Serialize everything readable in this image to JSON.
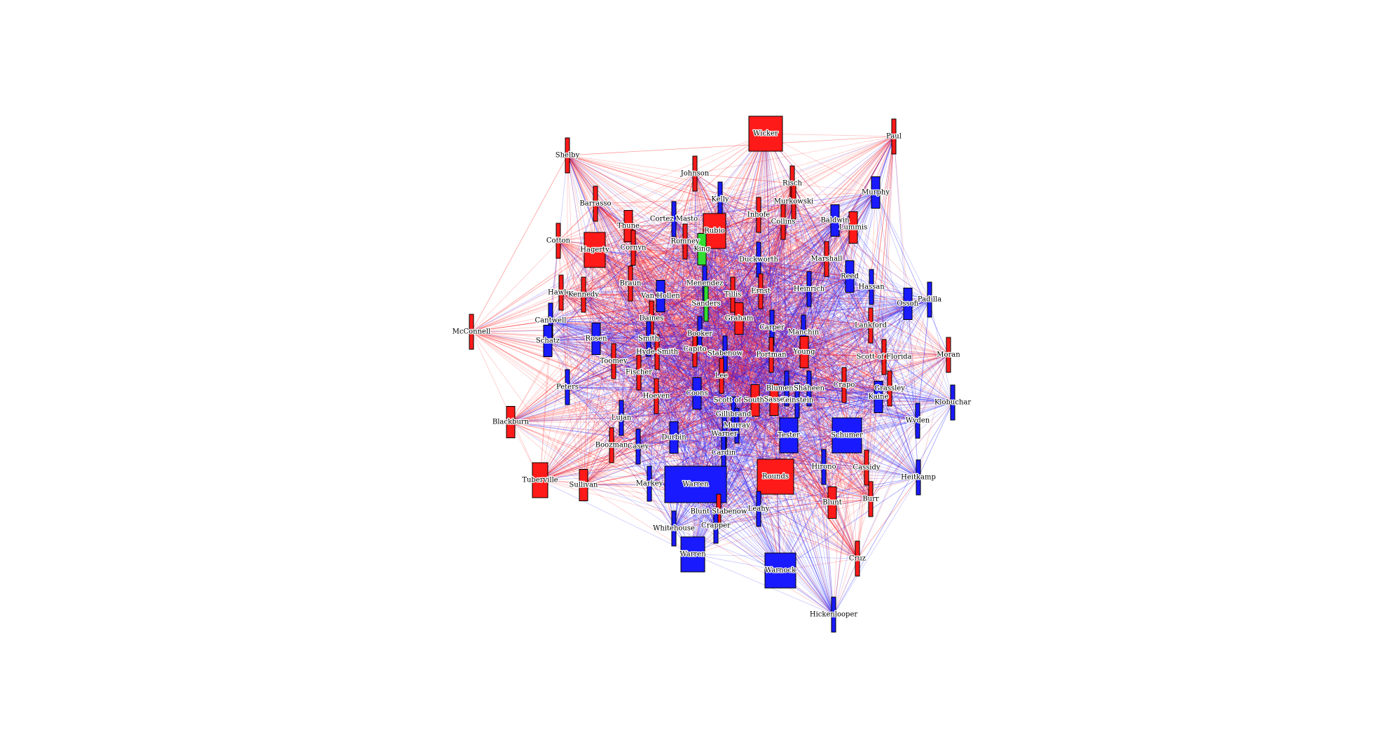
{
  "colors": {
    "Republican": "#ff1a1a",
    "Democrat": "#1a1aff",
    "Independent": "#33dd33",
    "background": "#ffffff",
    "edge_republican": "#ff2020",
    "edge_democrat": "#2020ff"
  },
  "nodes": [
    {
      "id": "Wicker",
      "party": "Republican",
      "size": "large"
    },
    {
      "id": "Paul",
      "party": "Republican",
      "size": "thin"
    },
    {
      "id": "Shelby",
      "party": "Republican",
      "size": "thin"
    },
    {
      "id": "Johnson",
      "party": "Republican",
      "size": "thin"
    },
    {
      "id": "Kelly",
      "party": "Democrat",
      "size": "thin"
    },
    {
      "id": "Risch",
      "party": "Republican",
      "size": "thin"
    },
    {
      "id": "Murkowski",
      "party": "Republican",
      "size": "thin"
    },
    {
      "id": "Murphy",
      "party": "Democrat",
      "size": "narrow"
    },
    {
      "id": "Barrasso",
      "party": "Republican",
      "size": "thin"
    },
    {
      "id": "Cortez Masto",
      "party": "Democrat",
      "size": "thin"
    },
    {
      "id": "Inhofe",
      "party": "Republican",
      "size": "thin"
    },
    {
      "id": "Collins",
      "party": "Republican",
      "size": "thin"
    },
    {
      "id": "Baldwin",
      "party": "Democrat",
      "size": "narrow"
    },
    {
      "id": "Lummis",
      "party": "Republican",
      "size": "narrow"
    },
    {
      "id": "Thune",
      "party": "Republican",
      "size": "narrow"
    },
    {
      "id": "Rubio",
      "party": "Republican",
      "size": "medium"
    },
    {
      "id": "Romney",
      "party": "Republican",
      "size": "thin"
    },
    {
      "id": "King",
      "party": "Independent",
      "size": "narrow"
    },
    {
      "id": "Cotton",
      "party": "Republican",
      "size": "thin"
    },
    {
      "id": "Hagerty",
      "party": "Republican",
      "size": "medium"
    },
    {
      "id": "Cornyn",
      "party": "Republican",
      "size": "thin"
    },
    {
      "id": "Duckworth",
      "party": "Democrat",
      "size": "thin"
    },
    {
      "id": "Marshall",
      "party": "Republican",
      "size": "thin"
    },
    {
      "id": "Hawley",
      "party": "Republican",
      "size": "thin"
    },
    {
      "id": "Kennedy",
      "party": "Republican",
      "size": "thin"
    },
    {
      "id": "Braun",
      "party": "Republican",
      "size": "thin"
    },
    {
      "id": "Van Hollen",
      "party": "Democrat",
      "size": "narrow"
    },
    {
      "id": "Menendez",
      "party": "Democrat",
      "size": "thin"
    },
    {
      "id": "Tillis",
      "party": "Republican",
      "size": "thin"
    },
    {
      "id": "Ernst",
      "party": "Republican",
      "size": "thin"
    },
    {
      "id": "Heinrich",
      "party": "Democrat",
      "size": "thin"
    },
    {
      "id": "Reed",
      "party": "Democrat",
      "size": "narrow"
    },
    {
      "id": "Hassan",
      "party": "Democrat",
      "size": "thin"
    },
    {
      "id": "Ossoff",
      "party": "Democrat",
      "size": "narrow"
    },
    {
      "id": "Padilla",
      "party": "Democrat",
      "size": "thin"
    },
    {
      "id": "Sanders",
      "party": "Independent",
      "size": "thin"
    },
    {
      "id": "Capito",
      "party": "Republican",
      "size": "thin"
    },
    {
      "id": "Daines",
      "party": "Republican",
      "size": "thin"
    },
    {
      "id": "Graham",
      "party": "Republican",
      "size": "narrow"
    },
    {
      "id": "Cantwell",
      "party": "Democrat",
      "size": "thin"
    },
    {
      "id": "McConnell",
      "party": "Republican",
      "size": "thin"
    },
    {
      "id": "Schatz",
      "party": "Democrat",
      "size": "narrow"
    },
    {
      "id": "Rosen",
      "party": "Democrat",
      "size": "narrow"
    },
    {
      "id": "Smith",
      "party": "Democrat",
      "size": "thin"
    },
    {
      "id": "Hyde-Smith",
      "party": "Republican",
      "size": "thin"
    },
    {
      "id": "Booker",
      "party": "Democrat",
      "size": "thin"
    },
    {
      "id": "Carper",
      "party": "Democrat",
      "size": "thin"
    },
    {
      "id": "Manchin",
      "party": "Democrat",
      "size": "thin"
    },
    {
      "id": "Lankford",
      "party": "Republican",
      "size": "thin"
    },
    {
      "id": "Toomey",
      "party": "Republican",
      "size": "thin"
    },
    {
      "id": "Stabenow",
      "party": "Democrat",
      "size": "thin"
    },
    {
      "id": "Portman",
      "party": "Republican",
      "size": "thin"
    },
    {
      "id": "Young",
      "party": "Republican",
      "size": "narrow"
    },
    {
      "id": "Scott of Florida",
      "party": "Republican",
      "size": "thin"
    },
    {
      "id": "Moran",
      "party": "Republican",
      "size": "thin"
    },
    {
      "id": "Fischer",
      "party": "Republican",
      "size": "thin"
    },
    {
      "id": "Peters",
      "party": "Democrat",
      "size": "thin"
    },
    {
      "id": "Lee",
      "party": "Republican",
      "size": "thin"
    },
    {
      "id": "Blumenthal",
      "party": "Democrat",
      "size": "thin"
    },
    {
      "id": "Shaheen",
      "party": "Democrat",
      "size": "thin"
    },
    {
      "id": "Crapo",
      "party": "Republican",
      "size": "thin"
    },
    {
      "id": "Grassley",
      "party": "Republican",
      "size": "thin"
    },
    {
      "id": "Kaine",
      "party": "Democrat",
      "size": "narrow"
    },
    {
      "id": "Klobuchar",
      "party": "Democrat",
      "size": "thin"
    },
    {
      "id": "Hoeven",
      "party": "Republican",
      "size": "thin"
    },
    {
      "id": "Coons",
      "party": "Democrat",
      "size": "narrow"
    },
    {
      "id": "Scott of South Carolina",
      "party": "Republican",
      "size": "narrow"
    },
    {
      "id": "Feinstein",
      "party": "Democrat",
      "size": "thin"
    },
    {
      "id": "Sasse",
      "party": "Republican",
      "size": "narrow"
    },
    {
      "id": "Blackburn",
      "party": "Republican",
      "size": "narrow"
    },
    {
      "id": "Luján",
      "party": "Democrat",
      "size": "thin"
    },
    {
      "id": "Gillibrand",
      "party": "Democrat",
      "size": "thin"
    },
    {
      "id": "Wyden",
      "party": "Democrat",
      "size": "thin"
    },
    {
      "id": "Murray",
      "party": "Democrat",
      "size": "thin"
    },
    {
      "id": "Tester",
      "party": "Democrat",
      "size": "medium"
    },
    {
      "id": "Schumer",
      "party": "Democrat",
      "size": "medium"
    },
    {
      "id": "Durbin",
      "party": "Democrat",
      "size": "narrow"
    },
    {
      "id": "Boozman",
      "party": "Republican",
      "size": "thin"
    },
    {
      "id": "Casey",
      "party": "Democrat",
      "size": "thin"
    },
    {
      "id": "Warner",
      "party": "Democrat",
      "size": "thin"
    },
    {
      "id": "Cardin",
      "party": "Democrat",
      "size": "thin"
    },
    {
      "id": "Hirono",
      "party": "Democrat",
      "size": "thin"
    },
    {
      "id": "Cassidy",
      "party": "Republican",
      "size": "thin"
    },
    {
      "id": "Tuberville",
      "party": "Republican",
      "size": "medium"
    },
    {
      "id": "Sullivan",
      "party": "Republican",
      "size": "narrow"
    },
    {
      "id": "Markey",
      "party": "Democrat",
      "size": "thin"
    },
    {
      "id": "Warren",
      "party": "Democrat",
      "size": "xlarge"
    },
    {
      "id": "Rounds",
      "party": "Republican",
      "size": "large"
    },
    {
      "id": "Heitkamp",
      "party": "Democrat",
      "size": "thin"
    },
    {
      "id": "Burr",
      "party": "Republican",
      "size": "thin"
    },
    {
      "id": "Leahy",
      "party": "Democrat",
      "size": "thin"
    },
    {
      "id": "Blunt",
      "party": "Republican",
      "size": "narrow"
    },
    {
      "id": "Blunt Stabenow",
      "party": "Republican",
      "size": "thin"
    },
    {
      "id": "Crapper",
      "party": "Democrat",
      "size": "thin"
    },
    {
      "id": "Whitehouse",
      "party": "Democrat",
      "size": "thin"
    },
    {
      "id": "Warren ",
      "party": "Democrat",
      "size": "medium"
    },
    {
      "id": "Warnock",
      "party": "Democrat",
      "size": "medium"
    },
    {
      "id": "Cruz",
      "party": "Republican",
      "size": "thin"
    },
    {
      "id": "Hickenlooper",
      "party": "Democrat",
      "size": "thin"
    }
  ]
}
